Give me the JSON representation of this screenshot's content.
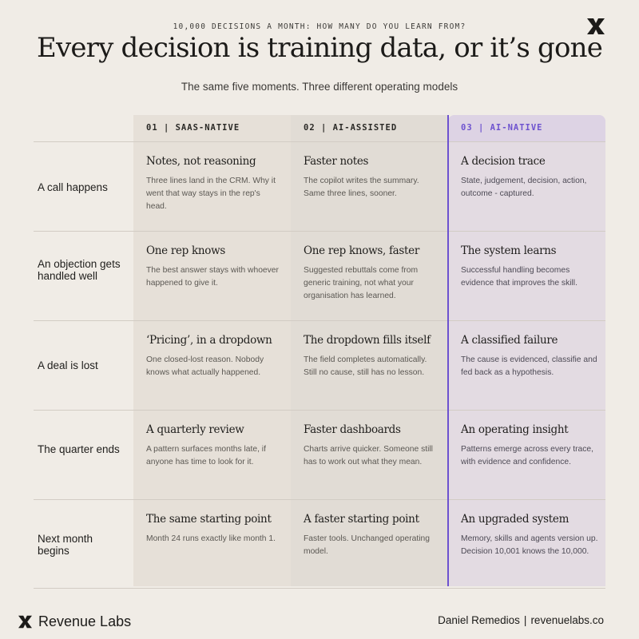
{
  "header": {
    "eyebrow": "10,000 DECISIONS A MONTH: HOW MANY DO YOU LEARN FROM?",
    "headline": "Every decision is training data, or it’s gone",
    "subtitle": "The same five moments. Three different operating models"
  },
  "columns": [
    {
      "label": "01 | SAAS-NATIVE"
    },
    {
      "label": "02 | AI-ASSISTED"
    },
    {
      "label": "03 | AI-NATIVE"
    }
  ],
  "rows": [
    {
      "label": "A call happens",
      "cells": [
        {
          "title": "Notes, not reasoning",
          "desc": "Three lines land in the CRM. Why it went that way stays in the rep's head."
        },
        {
          "title": "Faster notes",
          "desc": "The copilot writes the summary. Same three lines, sooner."
        },
        {
          "title": "A decision trace",
          "desc": "State, judgement, decision, action, outcome - captured."
        }
      ]
    },
    {
      "label": "An objection gets handled well",
      "cells": [
        {
          "title": "One rep knows",
          "desc": "The best answer stays with whoever happened to give it."
        },
        {
          "title": "One rep knows, faster",
          "desc": "Suggested rebuttals come from generic training, not what your organisation has learned."
        },
        {
          "title": "The system learns",
          "desc": "Successful handling becomes evidence that improves the skill."
        }
      ]
    },
    {
      "label": "A deal is lost",
      "cells": [
        {
          "title": "‘Pricing’, in a dropdown",
          "desc": "One closed-lost reason. Nobody knows what actually happened."
        },
        {
          "title": "The dropdown fills itself",
          "desc": "The field completes automatically. Still no cause, still has no lesson."
        },
        {
          "title": "A classified failure",
          "desc": "The cause is evidenced, classifie and fed back as a hypothesis."
        }
      ]
    },
    {
      "label": "The quarter ends",
      "cells": [
        {
          "title": "A quarterly review",
          "desc": "A pattern surfaces months late, if anyone has time to look for it."
        },
        {
          "title": "Faster dashboards",
          "desc": "Charts arrive quicker. Someone still has to work out what they mean."
        },
        {
          "title": "An operating insight",
          "desc": "Patterns emerge across every trace, with evidence and confidence."
        }
      ]
    },
    {
      "label": "Next month begins",
      "cells": [
        {
          "title": "The same starting point",
          "desc": "Month 24 runs exactly like month 1."
        },
        {
          "title": "A faster starting point",
          "desc": "Faster tools. Unchanged operating model."
        },
        {
          "title": "An upgraded system",
          "desc": "Memory, skills and agents version up. Decision 10,001 knows the 10,000."
        }
      ]
    }
  ],
  "footer": {
    "brand": "Revenue Labs",
    "author": "Daniel Remedios",
    "separator": "|",
    "site": "revenuelabs.co"
  },
  "icons": {
    "brand_logo": "revenue-labs-logo-icon"
  },
  "colors": {
    "background": "#f0ece6",
    "accent": "#6d52cf",
    "ink": "#1f1e1c"
  }
}
